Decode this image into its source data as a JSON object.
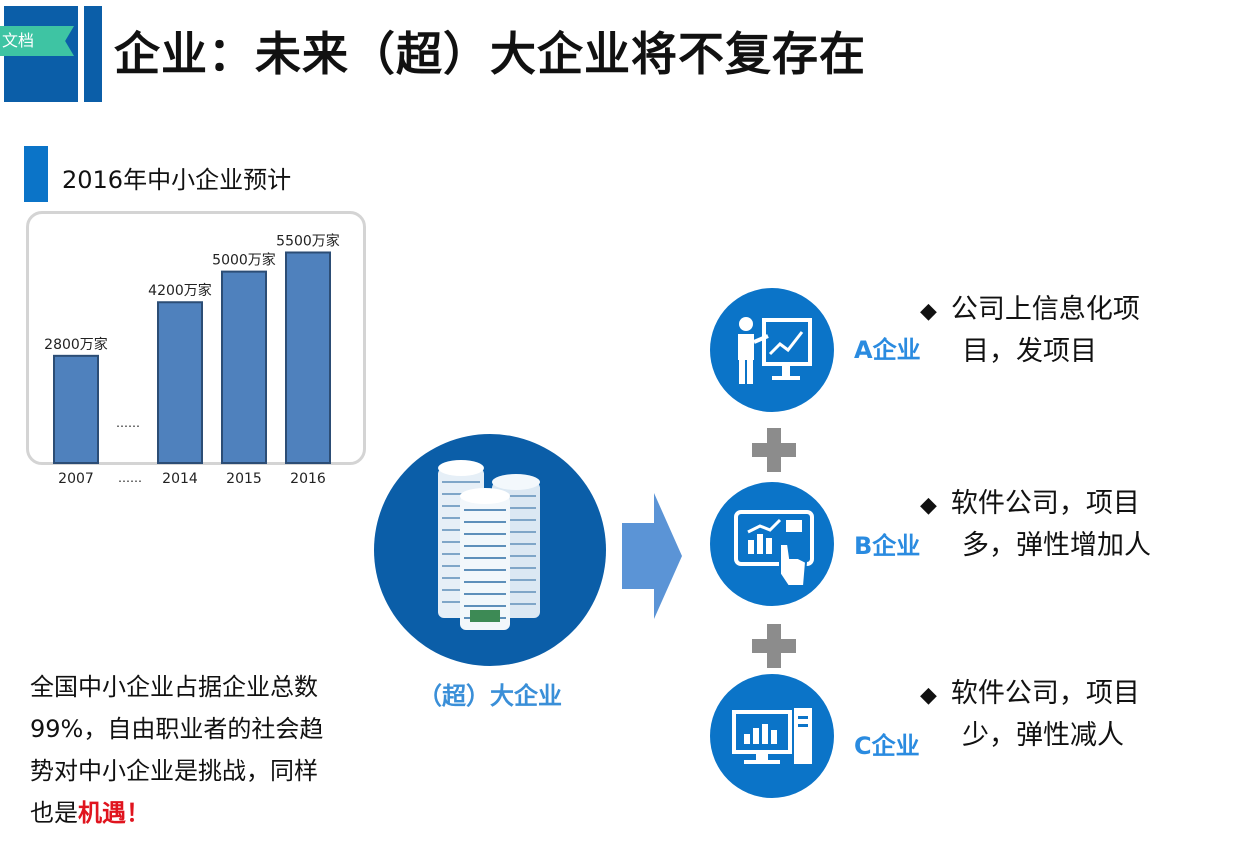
{
  "header": {
    "ribbon_text": "文档",
    "title": "企业：未来（超）大企业将不复存在"
  },
  "chart_section": {
    "title": "2016年中小企业预计"
  },
  "chart_data": {
    "type": "bar",
    "categories": [
      "2007",
      "2014",
      "2015",
      "2016"
    ],
    "values": [
      2800,
      4200,
      5000,
      5500
    ],
    "data_labels": [
      "2800万家",
      "4200万家",
      "5000万家",
      "5500万家"
    ],
    "gap_label": "……",
    "ylim": [
      0,
      5800
    ],
    "grid": false,
    "bar_color": "#4f81bd"
  },
  "left_text": {
    "line1": "全国中小企业占据企业总数",
    "line2": "99%，自由职业者的社会趋",
    "line3": "势对中小企业是挑战，同样",
    "line4_prefix": "也是",
    "line4_highlight": "机遇！"
  },
  "center": {
    "label": "（超）大企业"
  },
  "companies": [
    {
      "label": "A企业",
      "desc_line1": "公司上信息化项",
      "desc_line2": "目，发项目"
    },
    {
      "label": "B企业",
      "desc_line1": "软件公司，项目",
      "desc_line2": "多，弹性增加人"
    },
    {
      "label": "C企业",
      "desc_line1": "软件公司，项目",
      "desc_line2": "少，弹性减人"
    }
  ],
  "bullet_symbol": "◆",
  "colors": {
    "primary": "#0b5ea8",
    "accent": "#0b74c8",
    "label_blue": "#2a8be0",
    "highlight": "#e0141e",
    "ribbon": "#3ec4a3"
  }
}
